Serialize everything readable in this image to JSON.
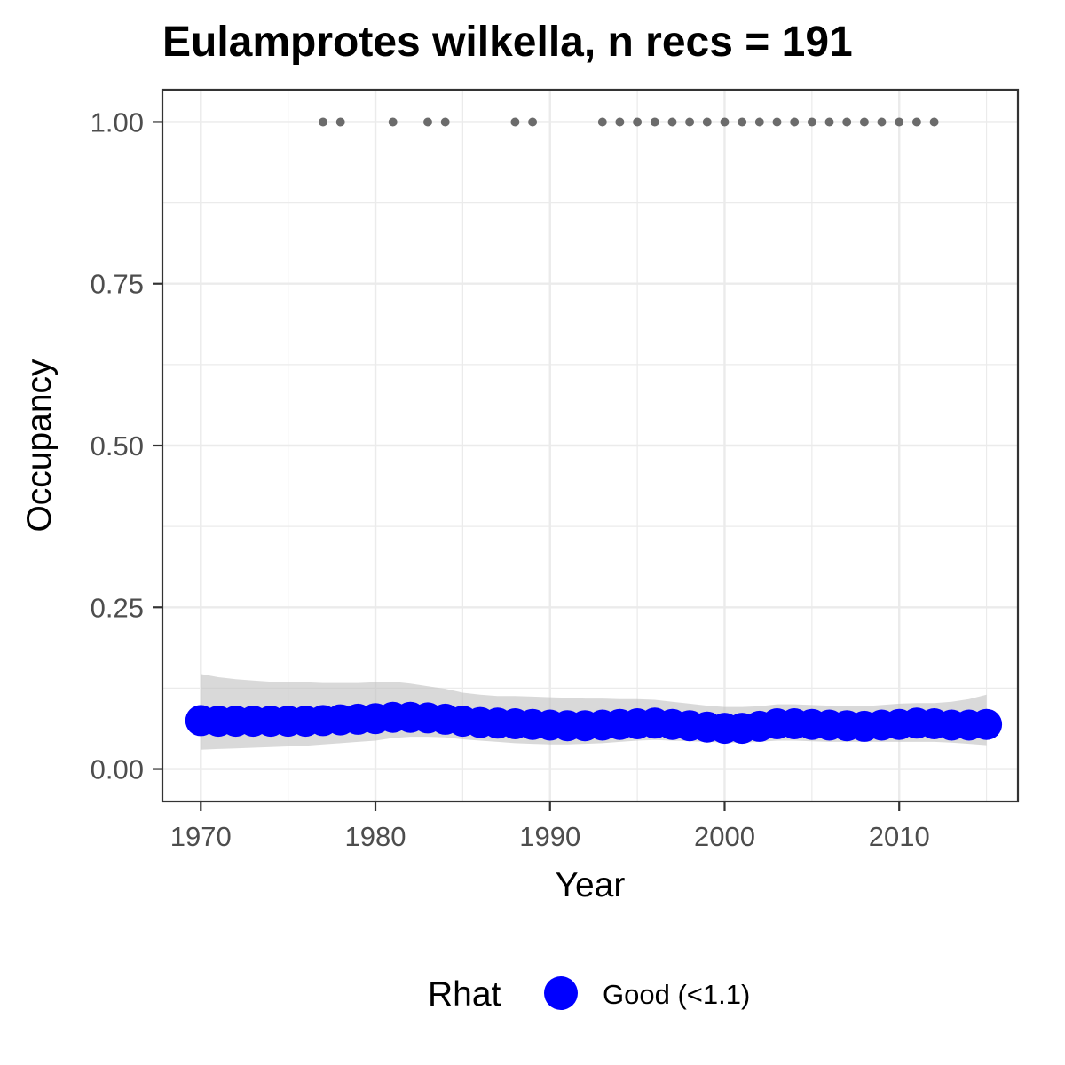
{
  "chart_data": {
    "type": "line",
    "title": "Eulamprotes wilkella, n recs = 191",
    "xlabel": "Year",
    "ylabel": "Occupancy",
    "xlim": [
      1967.8,
      2016.8
    ],
    "ylim": [
      -0.05,
      1.05
    ],
    "x_ticks": [
      1970,
      1980,
      1990,
      2000,
      2010
    ],
    "x_tick_labels": [
      "1970",
      "1980",
      "1990",
      "2000",
      "2010"
    ],
    "y_ticks": [
      0,
      0.25,
      0.5,
      0.75,
      1.0
    ],
    "y_tick_labels": [
      "0.00",
      "0.25",
      "0.50",
      "0.75",
      "1.00"
    ],
    "grid": true,
    "colors": {
      "estimate": "#0000ff",
      "ribbon": "#bfbfbf",
      "records": "#6b6b6b",
      "panel_border": "#333333",
      "grid": "#ebebeb"
    },
    "series": [
      {
        "x": [
          1970,
          1971,
          1972,
          1973,
          1974,
          1975,
          1976,
          1977,
          1978,
          1979,
          1980,
          1981,
          1982,
          1983,
          1984,
          1985,
          1986,
          1987,
          1988,
          1989,
          1990,
          1991,
          1992,
          1993,
          1994,
          1995,
          1996,
          1997,
          1998,
          1999,
          2000,
          2001,
          2002,
          2003,
          2004,
          2005,
          2006,
          2007,
          2008,
          2009,
          2010,
          2011,
          2012,
          2013,
          2014,
          2015
        ],
        "y": [
          0.075,
          0.074,
          0.074,
          0.074,
          0.074,
          0.074,
          0.074,
          0.075,
          0.076,
          0.077,
          0.078,
          0.08,
          0.08,
          0.079,
          0.077,
          0.074,
          0.072,
          0.071,
          0.07,
          0.069,
          0.068,
          0.067,
          0.067,
          0.068,
          0.069,
          0.07,
          0.071,
          0.069,
          0.067,
          0.065,
          0.063,
          0.063,
          0.066,
          0.07,
          0.07,
          0.069,
          0.068,
          0.067,
          0.066,
          0.068,
          0.069,
          0.071,
          0.07,
          0.068,
          0.068,
          0.069
        ],
        "lower": [
          0.03,
          0.031,
          0.032,
          0.033,
          0.034,
          0.035,
          0.036,
          0.038,
          0.04,
          0.042,
          0.044,
          0.048,
          0.05,
          0.05,
          0.049,
          0.046,
          0.044,
          0.042,
          0.04,
          0.039,
          0.038,
          0.038,
          0.039,
          0.04,
          0.042,
          0.044,
          0.045,
          0.044,
          0.043,
          0.042,
          0.041,
          0.041,
          0.042,
          0.044,
          0.044,
          0.043,
          0.042,
          0.042,
          0.042,
          0.042,
          0.042,
          0.042,
          0.042,
          0.041,
          0.039,
          0.037
        ],
        "upper": [
          0.147,
          0.142,
          0.139,
          0.137,
          0.135,
          0.134,
          0.134,
          0.133,
          0.133,
          0.133,
          0.134,
          0.135,
          0.132,
          0.128,
          0.124,
          0.118,
          0.115,
          0.113,
          0.113,
          0.112,
          0.111,
          0.11,
          0.109,
          0.109,
          0.108,
          0.108,
          0.107,
          0.104,
          0.101,
          0.098,
          0.096,
          0.096,
          0.097,
          0.1,
          0.1,
          0.099,
          0.098,
          0.097,
          0.097,
          0.099,
          0.101,
          0.102,
          0.102,
          0.104,
          0.108,
          0.115
        ]
      }
    ],
    "records": {
      "x": [
        1977,
        1978,
        1981,
        1983,
        1984,
        1988,
        1989,
        1993,
        1994,
        1995,
        1996,
        1997,
        1998,
        1999,
        2000,
        2001,
        2002,
        2003,
        2004,
        2005,
        2006,
        2007,
        2008,
        2009,
        2010,
        2011,
        2012
      ],
      "y": [
        1,
        1,
        1,
        1,
        1,
        1,
        1,
        1,
        1,
        1,
        1,
        1,
        1,
        1,
        1,
        1,
        1,
        1,
        1,
        1,
        1,
        1,
        1,
        1,
        1,
        1,
        1
      ]
    },
    "legend": {
      "position": "bottom",
      "title": "Rhat",
      "entries": [
        {
          "label": "Good (<1.1)",
          "color": "#0000ff"
        }
      ]
    }
  }
}
